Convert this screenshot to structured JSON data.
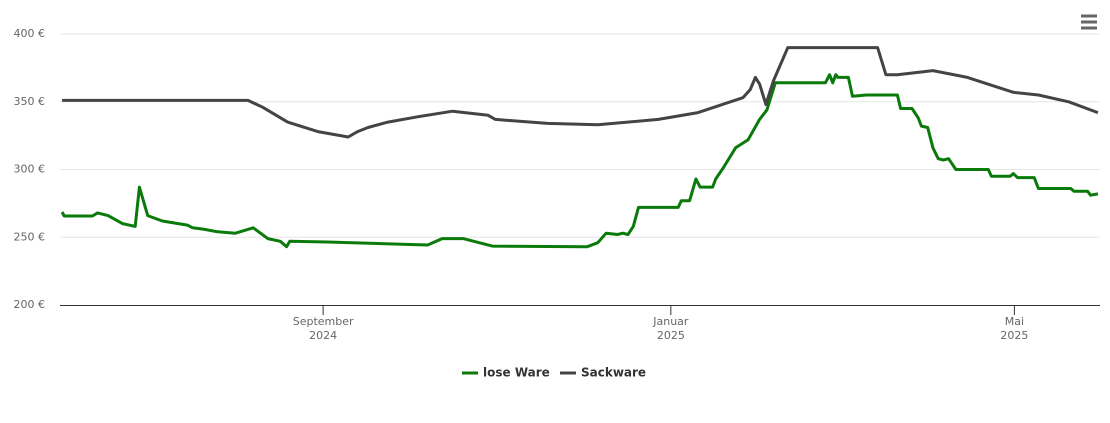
{
  "chart_data": {
    "type": "line",
    "xlim": [
      2024.415,
      2025.411
    ],
    "xticks": [
      {
        "value": 2024.667,
        "label": "September 2024"
      },
      {
        "value": 2025.0,
        "label": "Januar 2025"
      },
      {
        "value": 2025.329,
        "label": "Mai 2025"
      }
    ],
    "ylim": [
      200,
      400
    ],
    "yticks": [
      {
        "value": 200,
        "label": "200 €"
      },
      {
        "value": 250,
        "label": "250 €"
      },
      {
        "value": 300,
        "label": "300 €"
      },
      {
        "value": 350,
        "label": "350 €"
      },
      {
        "value": 400,
        "label": "400 €"
      }
    ],
    "grid": true,
    "legend": "bottom",
    "series": [
      {
        "name": "lose Ware",
        "color": "#0a7a0a",
        "x": [
          2024.417,
          2024.419,
          2024.446,
          2024.451,
          2024.461,
          2024.475,
          2024.487,
          2024.491,
          2024.499,
          2024.513,
          2024.537,
          2024.542,
          2024.552,
          2024.566,
          2024.583,
          2024.6,
          2024.614,
          2024.626,
          2024.632,
          2024.635,
          2024.671,
          2024.767,
          2024.781,
          2024.801,
          2024.829,
          2024.92,
          2024.93,
          2024.938,
          2024.949,
          2024.954,
          2024.959,
          2024.964,
          2024.969,
          2025.007,
          2025.01,
          2025.018,
          2025.024,
          2025.028,
          2025.04,
          2025.043,
          2025.05,
          2025.062,
          2025.074,
          2025.085,
          2025.092,
          2025.1,
          2025.148,
          2025.152,
          2025.155,
          2025.158,
          2025.16,
          2025.17,
          2025.174,
          2025.187,
          2025.19,
          2025.217,
          2025.22,
          2025.231,
          2025.237,
          2025.24,
          2025.246,
          2025.251,
          2025.256,
          2025.261,
          2025.266,
          2025.273,
          2025.304,
          2025.307,
          2025.325,
          2025.328,
          2025.332,
          2025.348,
          2025.352,
          2025.383,
          2025.386,
          2025.399,
          2025.402,
          2025.409
        ],
        "values": [
          268.6,
          265.7,
          265.7,
          268,
          266,
          260,
          258,
          287,
          266,
          262,
          259,
          257,
          256,
          254,
          253,
          257,
          249,
          247,
          243,
          247,
          246.5,
          244.3,
          249,
          249,
          243.5,
          243,
          246,
          253,
          252,
          253,
          252,
          258,
          272,
          272,
          277,
          277,
          293,
          287,
          287,
          293,
          301,
          316,
          322,
          337,
          344,
          364,
          364,
          370,
          364,
          370,
          368,
          368,
          354,
          355,
          355,
          355,
          345,
          345,
          338,
          332,
          331,
          316,
          308,
          307,
          308,
          300,
          300,
          295,
          295,
          297,
          294,
          294,
          286,
          286,
          284,
          284,
          281,
          282
        ]
      },
      {
        "name": "Sackware",
        "color": "#434348",
        "x": [
          2024.417,
          2024.595,
          2024.609,
          2024.633,
          2024.662,
          2024.691,
          2024.7,
          2024.71,
          2024.729,
          2024.758,
          2024.791,
          2024.825,
          2024.832,
          2024.882,
          2024.93,
          2024.988,
          2025.026,
          2025.069,
          2025.076,
          2025.081,
          2025.085,
          2025.091,
          2025.098,
          2025.112,
          2025.198,
          2025.206,
          2025.217,
          2025.251,
          2025.284,
          2025.328,
          2025.352,
          2025.381,
          2025.409
        ],
        "values": [
          351,
          351,
          346,
          335,
          328,
          324,
          328,
          331,
          335,
          339,
          343,
          340,
          337,
          334,
          333,
          337,
          342,
          353,
          359,
          368,
          363,
          348,
          365,
          390,
          390,
          370,
          370,
          373,
          368,
          357,
          355,
          350,
          342
        ]
      }
    ]
  }
}
